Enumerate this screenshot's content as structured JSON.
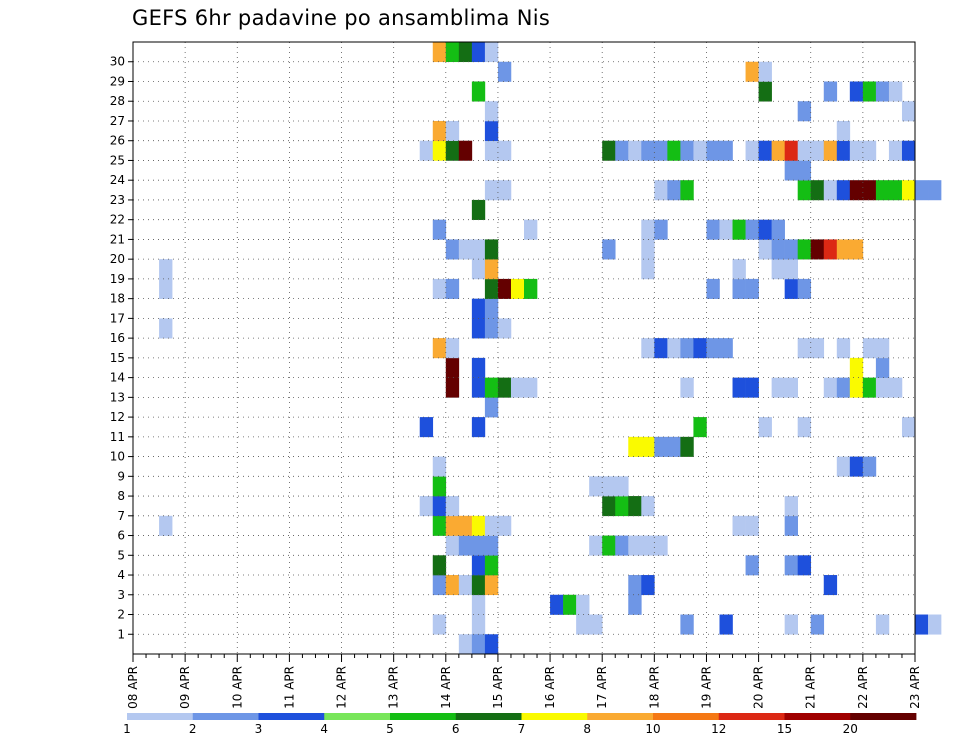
{
  "chart_data": {
    "type": "heatmap",
    "title": "GEFS 6hr padavine po ansamblima Nis",
    "xlabel": "",
    "ylabel": "",
    "x_ticks": [
      "08 APR",
      "09 APR",
      "10 APR",
      "11 APR",
      "12 APR",
      "13 APR",
      "14 APR",
      "15 APR",
      "16 APR",
      "17 APR",
      "18 APR",
      "19 APR",
      "20 APR",
      "21 APR",
      "22 APR",
      "23 APR"
    ],
    "y_ticks": [
      "1",
      "2",
      "3",
      "4",
      "5",
      "6",
      "7",
      "8",
      "9",
      "10",
      "11",
      "12",
      "13",
      "14",
      "15",
      "16",
      "17",
      "18",
      "19",
      "20",
      "21",
      "22",
      "23",
      "24",
      "25",
      "26",
      "27",
      "28",
      "29",
      "30"
    ],
    "x_range": [
      "08 APR 00Z",
      "23 APR 00Z"
    ],
    "y_range": [
      0,
      30
    ],
    "grid": true,
    "steps_per_day": 4,
    "legend_levels": [
      1,
      2,
      3,
      4,
      5,
      6,
      7,
      8,
      10,
      12,
      15,
      20
    ],
    "legend_colors": [
      "#b4c8f0",
      "#6e96e6",
      "#1e50dc",
      "#78e65a",
      "#14be14",
      "#146e14",
      "#fafa00",
      "#faaa32",
      "#f57814",
      "#dc2814",
      "#a00000",
      "#640000"
    ],
    "ensemble_rows": [
      {
        "member": 1,
        "cells": [
          [
            23,
            1
          ],
          [
            26,
            1
          ],
          [
            42,
            2
          ],
          [
            50,
            1
          ],
          [
            52,
            2
          ],
          [
            57,
            1
          ],
          [
            60,
            3
          ],
          [
            61,
            1
          ],
          [
            71,
            1
          ],
          [
            72,
            1
          ]
        ]
      },
      {
        "member": 2,
        "cells": [
          [
            16,
            3
          ],
          [
            21,
            3
          ],
          [
            22,
            5
          ],
          [
            23,
            1
          ],
          [
            31,
            1
          ],
          [
            36,
            2
          ]
        ]
      },
      {
        "member": 3,
        "cells": [
          [
            16,
            1
          ],
          [
            16,
            1
          ],
          [
            21,
            2
          ],
          [
            22,
            3
          ],
          [
            42,
            3
          ]
        ]
      },
      {
        "member": 4,
        "cells": [
          [
            43,
            1
          ]
        ]
      },
      {
        "member": 5,
        "cells": [
          [
            2,
            1
          ]
        ]
      }
    ],
    "cells": [
      [
        1,
        1,
        23
      ],
      [
        1,
        1,
        26
      ],
      [
        1,
        1,
        34
      ],
      [
        1,
        1,
        35
      ],
      [
        1,
        2,
        42
      ],
      [
        1,
        3,
        45
      ],
      [
        1,
        1,
        50
      ],
      [
        1,
        2,
        52
      ],
      [
        1,
        1,
        57
      ],
      [
        1,
        3,
        60
      ],
      [
        1,
        1,
        61
      ],
      [
        1,
        1,
        71
      ],
      [
        1,
        1,
        72
      ],
      [
        2,
        1,
        26
      ],
      [
        2,
        3,
        32
      ],
      [
        2,
        5,
        33
      ],
      [
        2,
        1,
        34
      ],
      [
        2,
        2,
        38
      ],
      [
        3,
        2,
        23
      ],
      [
        3,
        8,
        24
      ],
      [
        3,
        1,
        25
      ],
      [
        3,
        6,
        26
      ],
      [
        3,
        8,
        27
      ],
      [
        3,
        2,
        38
      ],
      [
        3,
        3,
        39
      ],
      [
        3,
        3,
        53
      ],
      [
        4,
        6,
        23
      ],
      [
        4,
        3,
        26
      ],
      [
        4,
        5,
        27
      ],
      [
        4,
        2,
        47
      ],
      [
        4,
        2,
        50
      ],
      [
        4,
        3,
        51
      ],
      [
        5,
        1,
        24
      ],
      [
        5,
        2,
        25
      ],
      [
        5,
        2,
        26
      ],
      [
        5,
        2,
        27
      ],
      [
        5,
        1,
        35
      ],
      [
        5,
        5,
        36
      ],
      [
        5,
        2,
        37
      ],
      [
        5,
        1,
        38
      ],
      [
        5,
        1,
        39
      ],
      [
        5,
        1,
        40
      ],
      [
        6,
        1,
        2
      ],
      [
        6,
        5,
        23
      ],
      [
        6,
        8,
        24
      ],
      [
        6,
        8,
        25
      ],
      [
        6,
        7,
        26
      ],
      [
        6,
        1,
        27
      ],
      [
        6,
        1,
        28
      ],
      [
        6,
        1,
        46
      ],
      [
        6,
        1,
        47
      ],
      [
        6,
        2,
        50
      ],
      [
        7,
        1,
        22
      ],
      [
        7,
        3,
        23
      ],
      [
        7,
        1,
        24
      ],
      [
        7,
        6,
        36
      ],
      [
        7,
        5,
        37
      ],
      [
        7,
        6,
        38
      ],
      [
        7,
        1,
        39
      ],
      [
        7,
        1,
        50
      ],
      [
        8,
        5,
        23
      ],
      [
        8,
        1,
        35
      ],
      [
        8,
        1,
        36
      ],
      [
        8,
        1,
        37
      ],
      [
        9,
        1,
        23
      ],
      [
        9,
        1,
        54
      ],
      [
        9,
        3,
        55
      ],
      [
        9,
        2,
        56
      ],
      [
        10,
        7,
        38
      ],
      [
        10,
        7,
        39
      ],
      [
        10,
        2,
        40
      ],
      [
        10,
        2,
        41
      ],
      [
        10,
        6,
        42
      ],
      [
        11,
        3,
        22
      ],
      [
        11,
        3,
        26
      ],
      [
        11,
        5,
        43
      ],
      [
        11,
        1,
        48
      ],
      [
        11,
        1,
        51
      ],
      [
        11,
        1,
        59
      ],
      [
        12,
        2,
        27
      ],
      [
        13,
        12,
        24
      ],
      [
        13,
        3,
        26
      ],
      [
        13,
        5,
        27
      ],
      [
        13,
        6,
        28
      ],
      [
        13,
        1,
        29
      ],
      [
        13,
        1,
        30
      ],
      [
        13,
        1,
        42
      ],
      [
        13,
        3,
        46
      ],
      [
        13,
        3,
        47
      ],
      [
        13,
        1,
        49
      ],
      [
        13,
        1,
        50
      ],
      [
        13,
        1,
        53
      ],
      [
        13,
        2,
        54
      ],
      [
        13,
        7,
        55
      ],
      [
        13,
        5,
        56
      ],
      [
        13,
        1,
        57
      ],
      [
        13,
        1,
        58
      ],
      [
        14,
        12,
        24
      ],
      [
        14,
        3,
        26
      ],
      [
        14,
        7,
        55
      ],
      [
        14,
        2,
        57
      ],
      [
        15,
        8,
        23
      ],
      [
        15,
        1,
        24
      ],
      [
        15,
        1,
        39
      ],
      [
        15,
        3,
        40
      ],
      [
        15,
        1,
        41
      ],
      [
        15,
        2,
        42
      ],
      [
        15,
        3,
        43
      ],
      [
        15,
        2,
        44
      ],
      [
        15,
        2,
        45
      ],
      [
        15,
        1,
        51
      ],
      [
        15,
        1,
        52
      ],
      [
        15,
        1,
        54
      ],
      [
        15,
        1,
        56
      ],
      [
        15,
        1,
        57
      ],
      [
        16,
        1,
        2
      ],
      [
        16,
        3,
        26
      ],
      [
        16,
        2,
        27
      ],
      [
        16,
        1,
        28
      ],
      [
        17,
        3,
        26
      ],
      [
        17,
        2,
        27
      ],
      [
        18,
        1,
        2
      ],
      [
        18,
        1,
        23
      ],
      [
        18,
        2,
        24
      ],
      [
        18,
        6,
        27
      ],
      [
        18,
        13,
        28
      ],
      [
        18,
        7,
        29
      ],
      [
        18,
        5,
        30
      ],
      [
        18,
        2,
        44
      ],
      [
        18,
        2,
        46
      ],
      [
        18,
        2,
        47
      ],
      [
        18,
        3,
        50
      ],
      [
        18,
        2,
        51
      ],
      [
        19,
        1,
        2
      ],
      [
        19,
        1,
        26
      ],
      [
        19,
        8,
        27
      ],
      [
        19,
        1,
        39
      ],
      [
        19,
        1,
        46
      ],
      [
        19,
        1,
        49
      ],
      [
        19,
        1,
        50
      ],
      [
        20,
        2,
        24
      ],
      [
        20,
        1,
        25
      ],
      [
        20,
        1,
        26
      ],
      [
        20,
        6,
        27
      ],
      [
        20,
        2,
        36
      ],
      [
        20,
        1,
        39
      ],
      [
        20,
        1,
        48
      ],
      [
        20,
        2,
        49
      ],
      [
        20,
        2,
        50
      ],
      [
        20,
        5,
        51
      ],
      [
        20,
        12,
        52
      ],
      [
        20,
        10,
        53
      ],
      [
        20,
        8,
        54
      ],
      [
        20,
        8,
        55
      ],
      [
        21,
        2,
        23
      ],
      [
        21,
        1,
        30
      ],
      [
        21,
        1,
        39
      ],
      [
        21,
        2,
        40
      ],
      [
        21,
        2,
        44
      ],
      [
        21,
        1,
        45
      ],
      [
        21,
        5,
        46
      ],
      [
        21,
        2,
        47
      ],
      [
        21,
        3,
        48
      ],
      [
        21,
        2,
        49
      ],
      [
        22,
        6,
        26
      ],
      [
        23,
        1,
        27
      ],
      [
        23,
        1,
        28
      ],
      [
        23,
        1,
        40
      ],
      [
        23,
        2,
        41
      ],
      [
        23,
        5,
        42
      ],
      [
        23,
        5,
        51
      ],
      [
        23,
        6,
        52
      ],
      [
        23,
        1,
        53
      ],
      [
        23,
        3,
        54
      ],
      [
        23,
        13,
        55
      ],
      [
        23,
        12,
        56
      ],
      [
        23,
        5,
        57
      ],
      [
        23,
        5,
        58
      ],
      [
        23,
        7,
        59
      ],
      [
        23,
        2,
        60
      ],
      [
        23,
        2,
        61
      ],
      [
        24,
        2,
        50
      ],
      [
        24,
        2,
        51
      ],
      [
        25,
        1,
        22
      ],
      [
        25,
        7,
        23
      ],
      [
        25,
        6,
        24
      ],
      [
        25,
        12,
        25
      ],
      [
        25,
        1,
        27
      ],
      [
        25,
        1,
        28
      ],
      [
        25,
        6,
        36
      ],
      [
        25,
        2,
        37
      ],
      [
        25,
        1,
        38
      ],
      [
        25,
        2,
        39
      ],
      [
        25,
        2,
        40
      ],
      [
        25,
        5,
        41
      ],
      [
        25,
        2,
        42
      ],
      [
        25,
        1,
        43
      ],
      [
        25,
        2,
        44
      ],
      [
        25,
        2,
        45
      ],
      [
        25,
        1,
        47
      ],
      [
        25,
        3,
        48
      ],
      [
        25,
        8,
        49
      ],
      [
        25,
        10,
        50
      ],
      [
        25,
        1,
        51
      ],
      [
        25,
        1,
        52
      ],
      [
        25,
        8,
        53
      ],
      [
        25,
        3,
        54
      ],
      [
        25,
        1,
        55
      ],
      [
        25,
        1,
        56
      ],
      [
        25,
        1,
        58
      ],
      [
        25,
        3,
        59
      ],
      [
        26,
        8,
        23
      ],
      [
        26,
        1,
        24
      ],
      [
        26,
        3,
        27
      ],
      [
        26,
        1,
        54
      ],
      [
        27,
        1,
        27
      ],
      [
        27,
        2,
        51
      ],
      [
        27,
        1,
        59
      ],
      [
        28,
        5,
        26
      ],
      [
        28,
        6,
        48
      ],
      [
        28,
        2,
        53
      ],
      [
        28,
        3,
        55
      ],
      [
        28,
        5,
        56
      ],
      [
        28,
        2,
        57
      ],
      [
        28,
        1,
        58
      ],
      [
        29,
        2,
        28
      ],
      [
        29,
        8,
        47
      ],
      [
        29,
        1,
        48
      ],
      [
        30,
        8,
        23
      ],
      [
        30,
        5,
        24
      ],
      [
        30,
        6,
        25
      ],
      [
        30,
        3,
        26
      ],
      [
        30,
        1,
        27
      ],
      [
        0,
        1,
        25
      ],
      [
        0,
        2,
        26
      ],
      [
        0,
        3,
        27
      ]
    ]
  }
}
